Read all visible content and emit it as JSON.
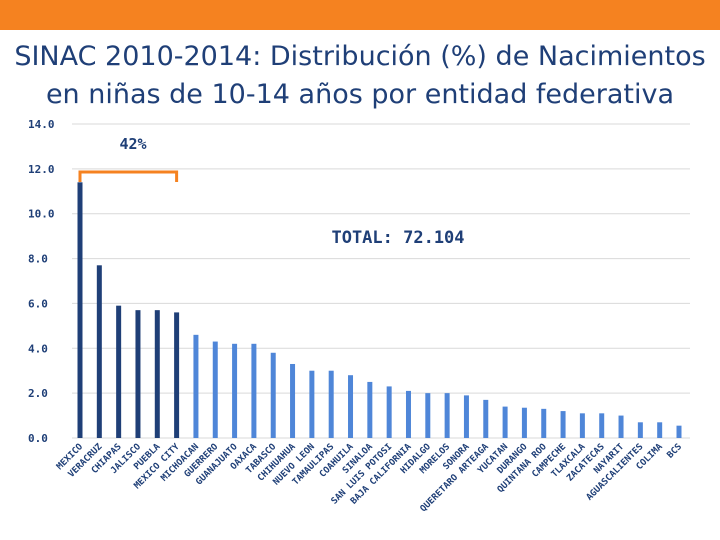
{
  "title_line1": "SINAC 2010-2014: Distribución (%) de Nacimientos",
  "title_line2": "en niñas de 10-14 años por entidad federativa",
  "colors": {
    "topbar": "#f58220",
    "title": "#1f3f77",
    "bar_primary": "#1f3f77",
    "bar_secondary": "#4f86d8",
    "bracket": "#f58220",
    "grid": "#d9d9d9",
    "label": "#1f3f77"
  },
  "chart_data": {
    "type": "bar",
    "title": "SINAC 2010-2014: Distribución (%) de Nacimientos en niñas de 10-14 años por entidad federativa",
    "xlabel": "",
    "ylabel": "",
    "ylim": [
      0,
      14
    ],
    "yticks": [
      0,
      2,
      4,
      6,
      8,
      10,
      12,
      14
    ],
    "ytick_labels": [
      "0.0",
      "2.0",
      "4.0",
      "6.0",
      "8.0",
      "10.0",
      "12.0",
      "14.0"
    ],
    "grid": true,
    "categories": [
      "MEXICO",
      "VERACRUZ",
      "CHIAPAS",
      "JALISCO",
      "PUEBLA",
      "MEXICO CITY",
      "MICHOACAN",
      "GUERRERO",
      "GUANAJUATO",
      "OAXACA",
      "TABASCO",
      "CHIHUAHUA",
      "NUEVO LEON",
      "TAMAULIPAS",
      "COAHUILA",
      "SINALOA",
      "SAN LUIS POTOSI",
      "BAJA CALIFORNIA",
      "HIDALGO",
      "MORELOS",
      "SONORA",
      "QUERETARO ARTEAGA",
      "YUCATAN",
      "DURANGO",
      "QUINTANA ROO",
      "CAMPECHE",
      "TLAXCALA",
      "ZACATECAS",
      "NAYARIT",
      "AGUASCALIENTES",
      "COLIMA",
      "BCS"
    ],
    "values": [
      11.4,
      7.7,
      5.9,
      5.7,
      5.7,
      5.6,
      4.6,
      4.3,
      4.2,
      4.2,
      3.8,
      3.3,
      3.0,
      3.0,
      2.8,
      2.5,
      2.3,
      2.1,
      2.0,
      2.0,
      1.9,
      1.7,
      1.4,
      1.35,
      1.3,
      1.2,
      1.1,
      1.1,
      1.0,
      0.7,
      0.7,
      0.55
    ],
    "highlight_count": 6,
    "annotations": {
      "bracket_label": "42%",
      "total": "TOTAL: 72.104"
    }
  }
}
